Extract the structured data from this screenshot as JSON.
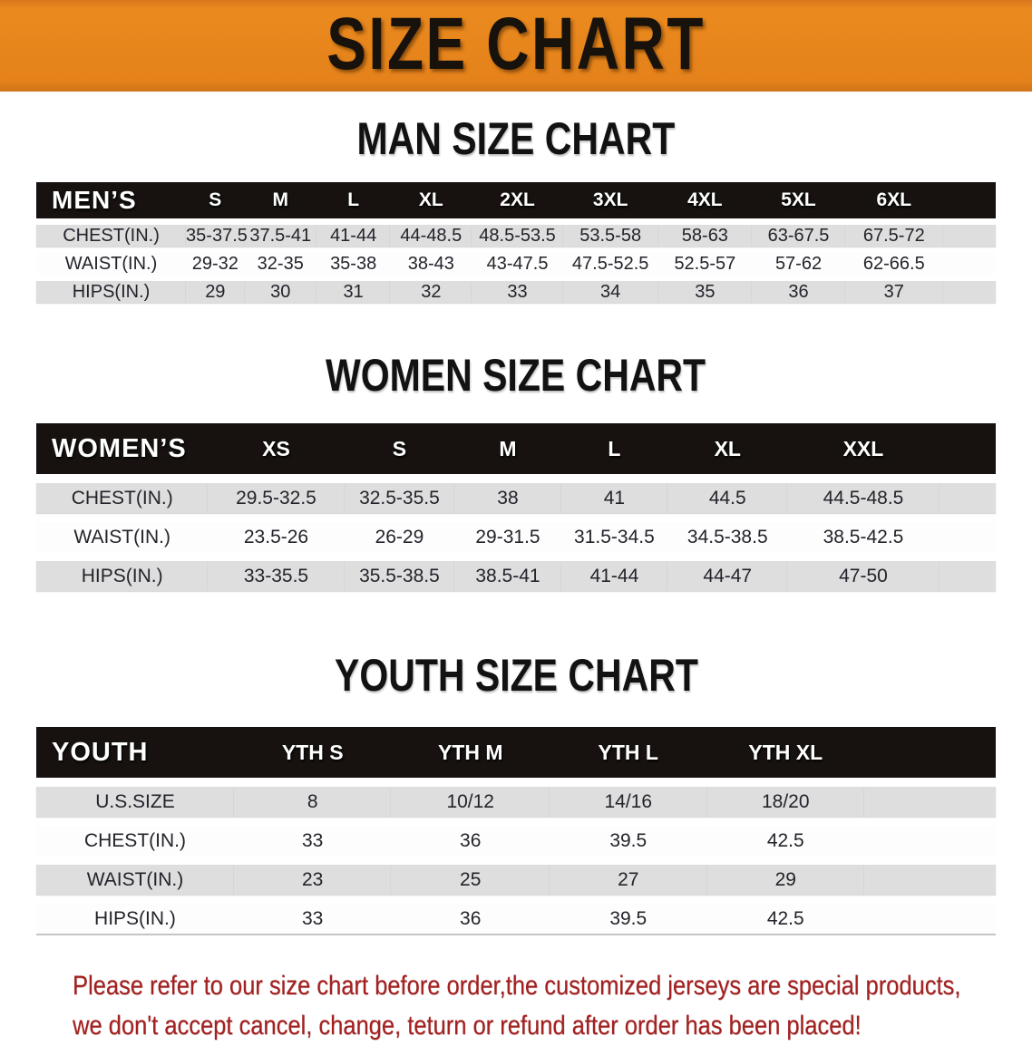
{
  "banner": {
    "title": "SIZE CHART",
    "bg_color": "#E5821B",
    "text_color": "#18120C"
  },
  "sections": [
    {
      "heading": "MAN SIZE CHART",
      "header_label": "MEN’S",
      "columns": [
        "S",
        "M",
        "L",
        "XL",
        "2XL",
        "3XL",
        "4XL",
        "5XL",
        "6XL"
      ],
      "rows": [
        {
          "label": "CHEST(IN.)",
          "values": [
            "35-37.5",
            "37.5-41",
            "41-44",
            "44-48.5",
            "48.5-53.5",
            "53.5-58",
            "58-63",
            "63-67.5",
            "67.5-72"
          ]
        },
        {
          "label": "WAIST(IN.)",
          "values": [
            "29-32",
            "32-35",
            "35-38",
            "38-43",
            "43-47.5",
            "47.5-52.5",
            "52.5-57",
            "57-62",
            "62-66.5"
          ]
        },
        {
          "label": "HIPS(IN.)",
          "values": [
            "29",
            "30",
            "31",
            "32",
            "33",
            "34",
            "35",
            "36",
            "37"
          ]
        }
      ]
    },
    {
      "heading": "WOMEN SIZE CHART",
      "header_label": "WOMEN’S",
      "columns": [
        "XS",
        "S",
        "M",
        "L",
        "XL",
        "XXL"
      ],
      "rows": [
        {
          "label": "CHEST(IN.)",
          "values": [
            "29.5-32.5",
            "32.5-35.5",
            "38",
            "41",
            "44.5",
            "44.5-48.5"
          ]
        },
        {
          "label": "WAIST(IN.)",
          "values": [
            "23.5-26",
            "26-29",
            "29-31.5",
            "31.5-34.5",
            "34.5-38.5",
            "38.5-42.5"
          ]
        },
        {
          "label": "HIPS(IN.)",
          "values": [
            "33-35.5",
            "35.5-38.5",
            "38.5-41",
            "41-44",
            "44-47",
            "47-50"
          ]
        }
      ]
    },
    {
      "heading": "YOUTH SIZE CHART",
      "header_label": "YOUTH",
      "columns": [
        "YTH S",
        "YTH M",
        "YTH L",
        "YTH XL"
      ],
      "rows": [
        {
          "label": "U.S.SIZE",
          "values": [
            "8",
            "10/12",
            "14/16",
            "18/20"
          ]
        },
        {
          "label": "CHEST(IN.)",
          "values": [
            "33",
            "36",
            "39.5",
            "42.5"
          ]
        },
        {
          "label": "WAIST(IN.)",
          "values": [
            "23",
            "25",
            "27",
            "29"
          ]
        },
        {
          "label": "HIPS(IN.)",
          "values": [
            "33",
            "36",
            "39.5",
            "42.5"
          ]
        }
      ]
    }
  ],
  "disclaimer": {
    "line1": "Please refer to our size chart before order,the customized jerseys are special products,",
    "line2": "we don't accept cancel, change, teturn or refund after order has been placed!",
    "color": "#A32020"
  }
}
